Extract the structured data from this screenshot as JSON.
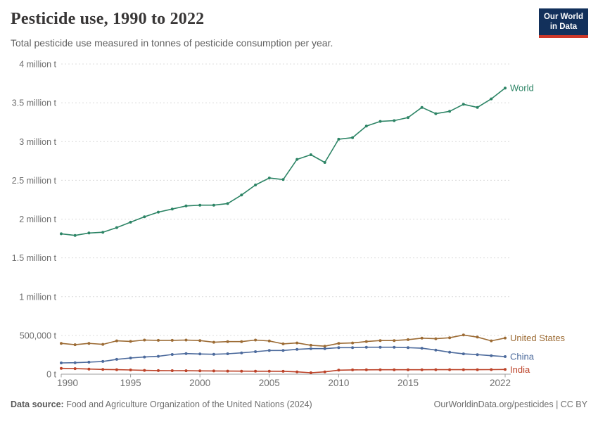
{
  "header": {
    "title": "Pesticide use, 1990 to 2022",
    "subtitle": "Total pesticide use measured in tonnes of pesticide consumption per year.",
    "logo_line1": "Our World",
    "logo_line2": "in Data",
    "logo_bg": "#12305b",
    "logo_accent": "#ce3728"
  },
  "footer": {
    "datasource_label": "Data source:",
    "datasource_text": " Food and Agriculture Organization of the United Nations (2024)",
    "credit": "OurWorldinData.org/pesticides | CC BY"
  },
  "chart_data": {
    "type": "line",
    "title": "Pesticide use, 1990 to 2022",
    "xlabel": "",
    "ylabel": "tonnes of pesticide consumption per year",
    "x": [
      1990,
      1991,
      1992,
      1993,
      1994,
      1995,
      1996,
      1997,
      1998,
      1999,
      2000,
      2001,
      2002,
      2003,
      2004,
      2005,
      2006,
      2007,
      2008,
      2009,
      2010,
      2011,
      2012,
      2013,
      2014,
      2015,
      2016,
      2017,
      2018,
      2019,
      2020,
      2021,
      2022
    ],
    "x_ticks": [
      1990,
      1995,
      2000,
      2005,
      2010,
      2015,
      2022
    ],
    "x_tick_labels": [
      "1990",
      "1995",
      "2000",
      "2005",
      "2010",
      "2015",
      "2022"
    ],
    "ylim": [
      0,
      4000000
    ],
    "y_ticks": [
      0,
      500000,
      1000000,
      1500000,
      2000000,
      2500000,
      3000000,
      3500000,
      4000000
    ],
    "y_tick_labels": [
      "0 t",
      "500,000 t",
      "1 million t",
      "1.5 million t",
      "2 million t",
      "2.5 million t",
      "3 million t",
      "3.5 million t",
      "4 million t"
    ],
    "grid": "horizontal-dashed",
    "legend_position": "end-of-line-labels",
    "series": [
      {
        "name": "World",
        "color": "#2c8465",
        "values": [
          1810000,
          1790000,
          1820000,
          1830000,
          1890000,
          1960000,
          2030000,
          2090000,
          2130000,
          2170000,
          2180000,
          2180000,
          2200000,
          2310000,
          2440000,
          2530000,
          2510000,
          2770000,
          2830000,
          2730000,
          3030000,
          3050000,
          3200000,
          3260000,
          3270000,
          3310000,
          3440000,
          3360000,
          3390000,
          3480000,
          3440000,
          3550000,
          3690000
        ]
      },
      {
        "name": "United States",
        "color": "#9c6b34",
        "values": [
          397000,
          380000,
          397000,
          385000,
          430000,
          423000,
          440000,
          436000,
          436000,
          440000,
          434000,
          412000,
          420000,
          420000,
          440000,
          428000,
          391000,
          403000,
          373000,
          361000,
          397000,
          403000,
          421000,
          434000,
          434000,
          445000,
          464000,
          457000,
          470000,
          505000,
          478000,
          430000,
          466000
        ]
      },
      {
        "name": "China",
        "color": "#4c6a9c",
        "values": [
          145000,
          148000,
          155000,
          164000,
          191000,
          209000,
          221000,
          230000,
          254000,
          266000,
          260000,
          257000,
          263000,
          275000,
          290000,
          306000,
          306000,
          320000,
          329000,
          329000,
          342000,
          342000,
          347000,
          347000,
          347000,
          342000,
          335000,
          311000,
          283000,
          262000,
          252000,
          239000,
          227000
        ]
      },
      {
        "name": "India",
        "color": "#bc4228",
        "values": [
          75000,
          72000,
          66000,
          61000,
          58000,
          54000,
          49000,
          46000,
          45000,
          44000,
          43000,
          42000,
          40000,
          39000,
          38000,
          38000,
          37000,
          30000,
          18000,
          30000,
          52000,
          55000,
          56000,
          57000,
          57000,
          57000,
          57000,
          58000,
          58000,
          58000,
          58000,
          59000,
          61000
        ]
      }
    ]
  }
}
